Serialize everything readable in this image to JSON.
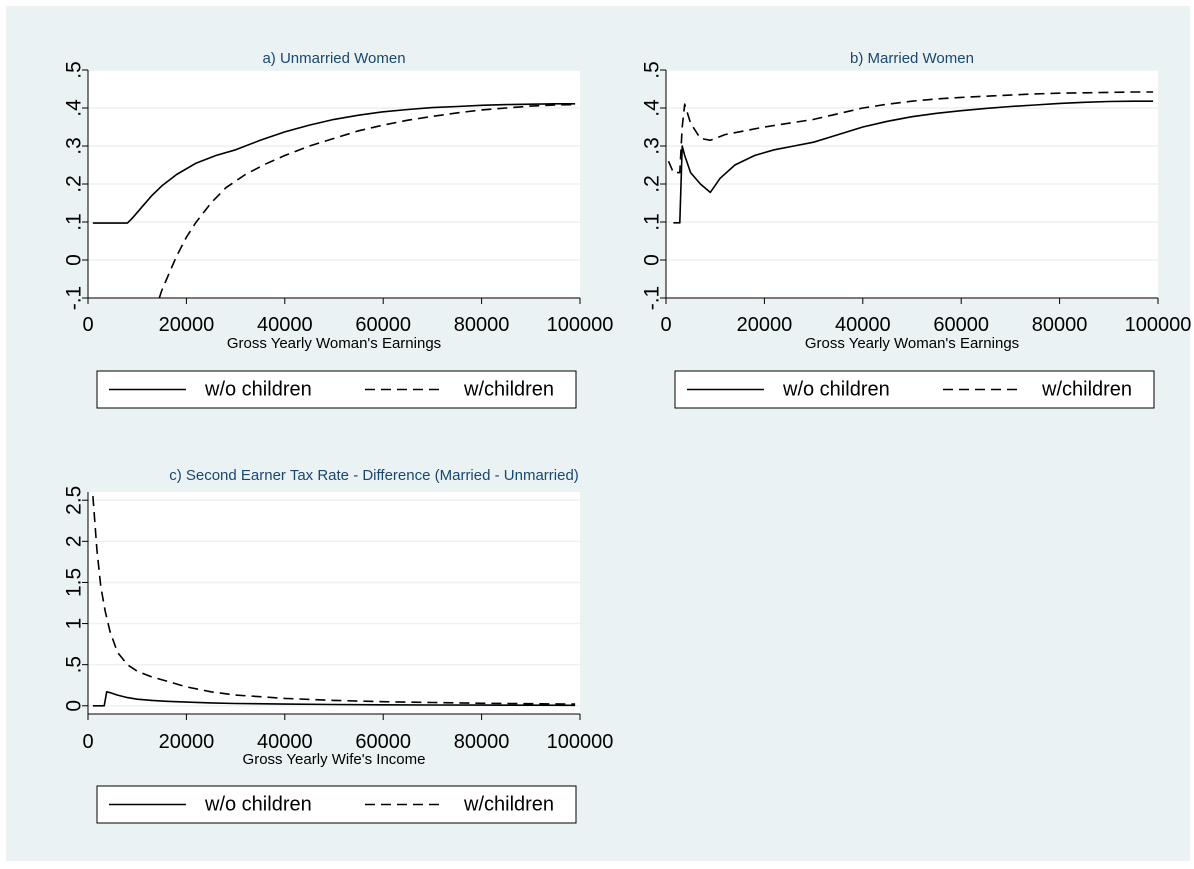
{
  "colors": {
    "background": "#eaf2f3",
    "plot_bg": "#ffffff",
    "title": "#1a476f",
    "grid": "#eaf2f3",
    "line": "#000000"
  },
  "legend_labels": {
    "solid": "w/o children",
    "dashed": "w/children"
  },
  "chart_data": [
    {
      "type": "line",
      "title": "a) Unmarried Women",
      "xlabel": "Gross Yearly Woman's Earnings",
      "ylabel": "",
      "xlim": [
        0,
        100000
      ],
      "ylim": [
        -0.1,
        0.5
      ],
      "xticks": [
        0,
        20000,
        40000,
        60000,
        80000,
        100000
      ],
      "xtick_labels": [
        "0",
        "20000",
        "40000",
        "60000",
        "80000",
        "100000"
      ],
      "yticks": [
        -0.1,
        0,
        0.1,
        0.2,
        0.3,
        0.4,
        0.5
      ],
      "ytick_labels": [
        "-.1",
        "0",
        ".1",
        ".2",
        ".3",
        ".4",
        ".5"
      ],
      "grid": true,
      "legend_position": "bottom",
      "series": [
        {
          "name": "w/o children",
          "style": "solid",
          "x": [
            1000,
            3000,
            8000,
            9000,
            11000,
            13000,
            15000,
            18000,
            22000,
            26000,
            30000,
            35000,
            40000,
            45000,
            50000,
            55000,
            60000,
            65000,
            70000,
            75000,
            80000,
            85000,
            90000,
            95000,
            99000
          ],
          "y": [
            0.097,
            0.097,
            0.097,
            0.11,
            0.14,
            0.17,
            0.195,
            0.225,
            0.255,
            0.275,
            0.29,
            0.315,
            0.337,
            0.355,
            0.37,
            0.381,
            0.39,
            0.396,
            0.401,
            0.404,
            0.407,
            0.409,
            0.41,
            0.411,
            0.411
          ]
        },
        {
          "name": "w/children",
          "style": "dashed",
          "x": [
            14500,
            15000,
            16000,
            17000,
            18000,
            20000,
            22000,
            25000,
            28000,
            32000,
            36000,
            40000,
            45000,
            50000,
            55000,
            60000,
            65000,
            70000,
            75000,
            80000,
            85000,
            90000,
            95000,
            99000
          ],
          "y": [
            -0.1,
            -0.08,
            -0.05,
            -0.02,
            0.01,
            0.06,
            0.1,
            0.15,
            0.19,
            0.225,
            0.252,
            0.275,
            0.3,
            0.32,
            0.34,
            0.355,
            0.368,
            0.378,
            0.387,
            0.395,
            0.4,
            0.405,
            0.408,
            0.409
          ]
        }
      ]
    },
    {
      "type": "line",
      "title": "b) Married Women",
      "xlabel": "Gross Yearly Woman's Earnings",
      "ylabel": "",
      "xlim": [
        0,
        100000
      ],
      "ylim": [
        -0.1,
        0.5
      ],
      "xticks": [
        0,
        20000,
        40000,
        60000,
        80000,
        100000
      ],
      "xtick_labels": [
        "0",
        "20000",
        "40000",
        "60000",
        "80000",
        "100000"
      ],
      "yticks": [
        -0.1,
        0,
        0.1,
        0.2,
        0.3,
        0.4,
        0.5
      ],
      "ytick_labels": [
        "-.1",
        "0",
        ".1",
        ".2",
        ".3",
        ".4",
        ".5"
      ],
      "grid": true,
      "legend_position": "bottom",
      "series": [
        {
          "name": "w/o children",
          "style": "solid",
          "x": [
            1500,
            2800,
            3300,
            3800,
            5000,
            7000,
            9000,
            11000,
            14000,
            18000,
            22000,
            26000,
            30000,
            35000,
            40000,
            45000,
            50000,
            55000,
            60000,
            65000,
            70000,
            75000,
            80000,
            85000,
            90000,
            95000,
            99000
          ],
          "y": [
            0.098,
            0.098,
            0.3,
            0.275,
            0.23,
            0.2,
            0.178,
            0.215,
            0.25,
            0.275,
            0.29,
            0.3,
            0.31,
            0.33,
            0.35,
            0.365,
            0.377,
            0.386,
            0.393,
            0.399,
            0.404,
            0.408,
            0.412,
            0.415,
            0.417,
            0.418,
            0.418
          ]
        },
        {
          "name": "w/children",
          "style": "dashed",
          "x": [
            500,
            1500,
            2800,
            3300,
            3800,
            5000,
            7000,
            9000,
            12000,
            16000,
            20000,
            25000,
            30000,
            35000,
            40000,
            45000,
            50000,
            55000,
            60000,
            65000,
            70000,
            75000,
            80000,
            85000,
            90000,
            95000,
            99000
          ],
          "y": [
            0.26,
            0.23,
            0.23,
            0.35,
            0.41,
            0.36,
            0.32,
            0.315,
            0.33,
            0.34,
            0.35,
            0.36,
            0.37,
            0.385,
            0.4,
            0.41,
            0.418,
            0.424,
            0.428,
            0.431,
            0.434,
            0.437,
            0.439,
            0.44,
            0.441,
            0.442,
            0.442
          ]
        }
      ]
    },
    {
      "type": "line",
      "title": "c) Second Earner Tax Rate - Difference (Married - Unmarried)",
      "xlabel": "Gross Yearly Wife's Income",
      "ylabel": "",
      "xlim": [
        0,
        100000
      ],
      "ylim": [
        -0.1,
        2.6
      ],
      "xticks": [
        0,
        20000,
        40000,
        60000,
        80000,
        100000
      ],
      "xtick_labels": [
        "0",
        "20000",
        "40000",
        "60000",
        "80000",
        "100000"
      ],
      "yticks": [
        0,
        0.5,
        1,
        1.5,
        2,
        2.5
      ],
      "ytick_labels": [
        "0",
        ".5",
        "1",
        "1.5",
        "2",
        "2.5"
      ],
      "grid": true,
      "legend_position": "bottom",
      "series": [
        {
          "name": "w/o children",
          "style": "solid",
          "x": [
            1000,
            3300,
            3800,
            4500,
            6000,
            8000,
            10000,
            13000,
            16000,
            20000,
            25000,
            30000,
            40000,
            50000,
            60000,
            70000,
            80000,
            90000,
            99000
          ],
          "y": [
            0,
            0,
            0.17,
            0.16,
            0.13,
            0.1,
            0.08,
            0.065,
            0.055,
            0.045,
            0.035,
            0.028,
            0.02,
            0.015,
            0.012,
            0.01,
            0.008,
            0.007,
            0.006
          ]
        },
        {
          "name": "w/children",
          "style": "dashed",
          "x": [
            1000,
            1800,
            2600,
            3500,
            4500,
            6000,
            8000,
            10000,
            13000,
            16000,
            20000,
            25000,
            30000,
            35000,
            40000,
            50000,
            60000,
            70000,
            80000,
            90000,
            99000
          ],
          "y": [
            2.55,
            1.9,
            1.45,
            1.15,
            0.9,
            0.65,
            0.5,
            0.42,
            0.35,
            0.3,
            0.23,
            0.17,
            0.13,
            0.11,
            0.09,
            0.065,
            0.05,
            0.04,
            0.03,
            0.025,
            0.02
          ]
        }
      ]
    }
  ]
}
